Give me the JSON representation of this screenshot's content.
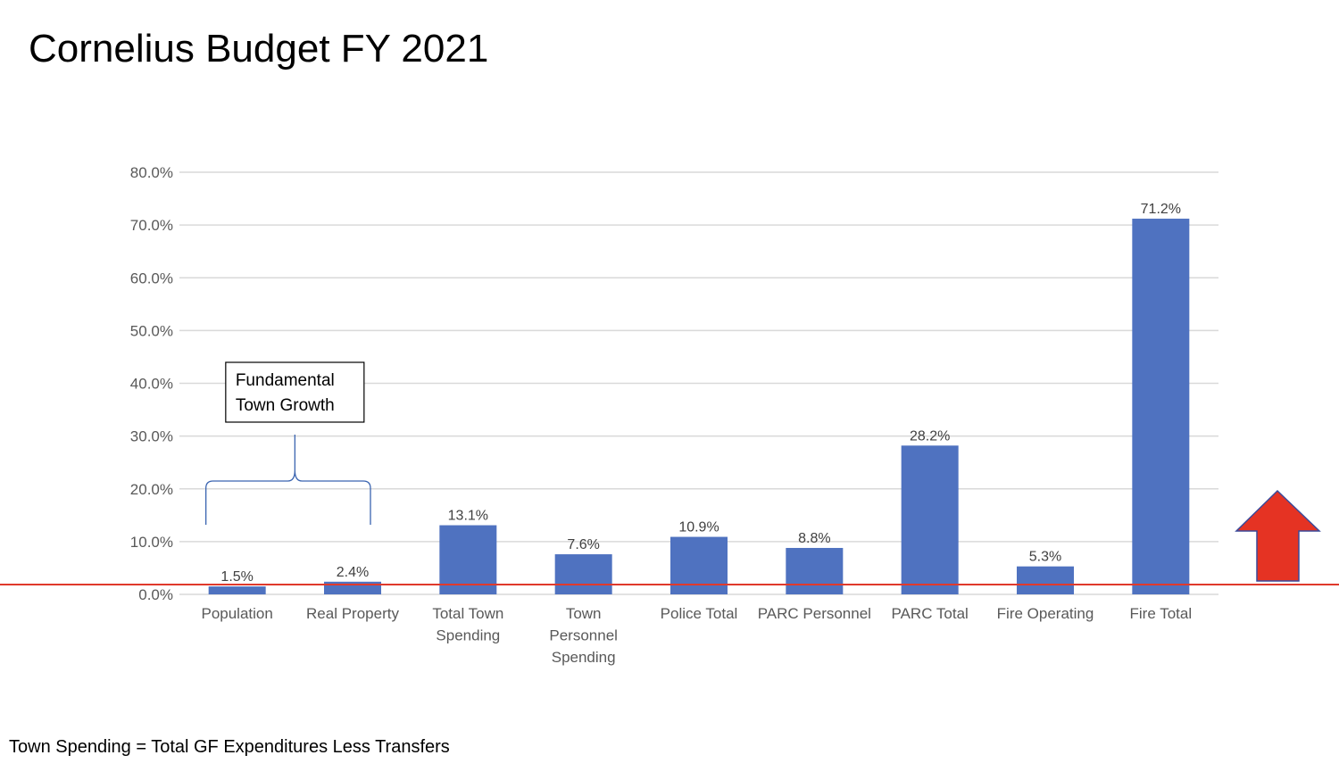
{
  "slide": {
    "title": "Cornelius Budget FY 2021",
    "footnote": "Town Spending = Total GF Expenditures Less Transfers"
  },
  "colors": {
    "bar": "#4f72c0",
    "gridline": "#d9d9d9",
    "baseline_rule": "#e0392b",
    "arrow_fill": "#e53323",
    "arrow_stroke": "#3a4a9a",
    "brace": "#3a64b0"
  },
  "chart_data": {
    "type": "bar",
    "categories": [
      [
        "Population"
      ],
      [
        "Real Property"
      ],
      [
        "Total Town",
        "Spending"
      ],
      [
        "Town",
        "Personnel",
        "Spending"
      ],
      [
        "Police Total"
      ],
      [
        "PARC Personnel"
      ],
      [
        "PARC Total"
      ],
      [
        "Fire Operating"
      ],
      [
        "Fire Total"
      ]
    ],
    "values": [
      1.5,
      2.4,
      13.1,
      7.6,
      10.9,
      8.8,
      28.2,
      5.3,
      71.2
    ],
    "data_labels": [
      "1.5%",
      "2.4%",
      "13.1%",
      "7.6%",
      "10.9%",
      "8.8%",
      "28.2%",
      "5.3%",
      "71.2%"
    ],
    "ylim": [
      0,
      80
    ],
    "yticks": [
      "0.0%",
      "10.0%",
      "20.0%",
      "30.0%",
      "40.0%",
      "50.0%",
      "60.0%",
      "70.0%",
      "80.0%"
    ],
    "grid": true,
    "annotation": {
      "lines": [
        "Fundamental",
        "Town Growth"
      ],
      "spans_categories": [
        0,
        1
      ]
    },
    "reference_line_value": 1.5,
    "arrow_direction": "up"
  }
}
